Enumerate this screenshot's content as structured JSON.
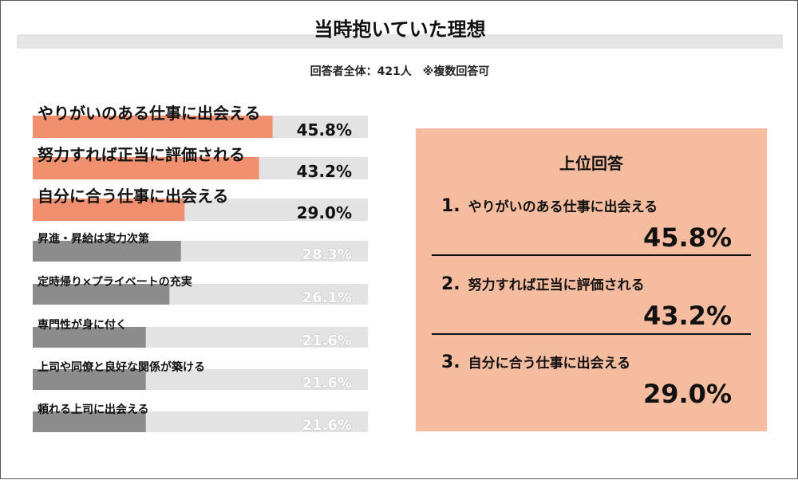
{
  "title": "当時抱いていた理想",
  "subtitle": "回答者全体：421人　※複数回答可",
  "colors": {
    "highlight": "#f0906f",
    "normal": "#8c8c8c",
    "track": "#e3e3e3",
    "panel": "#f6bc9f"
  },
  "chart_data": {
    "type": "bar",
    "orientation": "horizontal",
    "categories": [
      "やりがいのある仕事に出会える",
      "努力すれば正当に評価される",
      "自分に合う仕事に出会える",
      "昇進・昇給は実力次第",
      "定時帰り×プライベートの充実",
      "専門性が身に付く",
      "上司や同僚と良好な関係が築ける",
      "頼れる上司に出会える"
    ],
    "values": [
      45.8,
      43.2,
      29.0,
      28.3,
      26.1,
      21.6,
      21.6,
      21.6
    ],
    "value_labels": [
      "45.8%",
      "43.2%",
      "29.0%",
      "28.3%",
      "26.1%",
      "21.6%",
      "21.6%",
      "21.6%"
    ],
    "highlighted_count": 3,
    "xlim": [
      0,
      64
    ],
    "grid": false,
    "legend": "none"
  },
  "top_panel": {
    "heading": "上位回答",
    "items": [
      {
        "num": "1.",
        "label": "やりがいのある仕事に出会える",
        "value": "45.8%"
      },
      {
        "num": "2.",
        "label": "努力すれば正当に評価される",
        "value": "43.2%"
      },
      {
        "num": "3.",
        "label": "自分に合う仕事に出会える",
        "value": "29.0%"
      }
    ]
  }
}
